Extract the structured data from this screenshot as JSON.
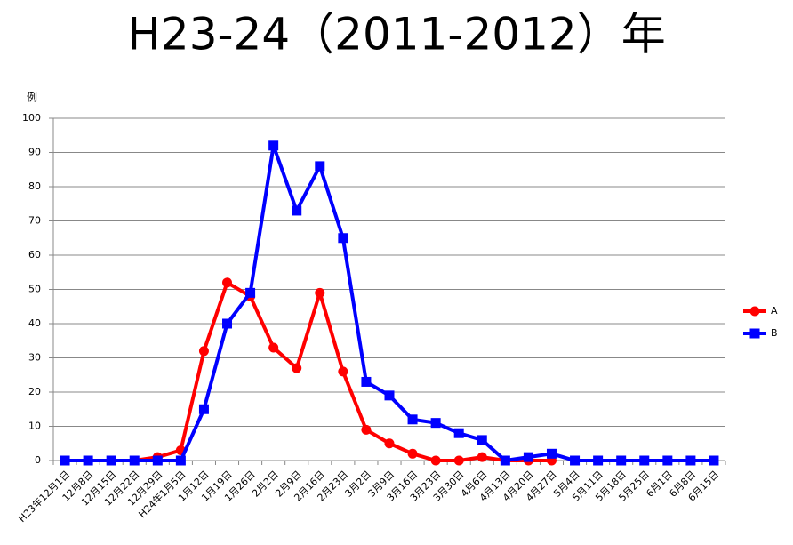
{
  "chart_data": {
    "type": "line",
    "title": "H23-24（2011-2012）年",
    "y_label": "例",
    "categories": [
      "H23年12月1日",
      "12月8日",
      "12月15日",
      "12月22日",
      "12月29日",
      "H24年1月5日",
      "1月12日",
      "1月19日",
      "1月26日",
      "2月2日",
      "2月9日",
      "2月16日",
      "2月23日",
      "3月2日",
      "3月9日",
      "3月16日",
      "3月23日",
      "3月30日",
      "4月6日",
      "4月13日",
      "4月20日",
      "4月27日",
      "5月4日",
      "5月11日",
      "5月18日",
      "5月25日",
      "6月1日",
      "6月8日",
      "6月15日"
    ],
    "series": [
      {
        "name": "A",
        "color": "#ff0000",
        "marker": "circle",
        "values": [
          0,
          0,
          0,
          0,
          1,
          3,
          32,
          52,
          48,
          33,
          27,
          49,
          26,
          9,
          5,
          2,
          0,
          0,
          1,
          0,
          0,
          0,
          null,
          null,
          null,
          null,
          null,
          null,
          null
        ]
      },
      {
        "name": "B",
        "color": "#0000ff",
        "marker": "square",
        "values": [
          0,
          0,
          0,
          0,
          0,
          0,
          15,
          40,
          49,
          92,
          73,
          86,
          65,
          23,
          19,
          12,
          11,
          8,
          6,
          0,
          1,
          2,
          0,
          0,
          0,
          0,
          0,
          0,
          0
        ]
      }
    ],
    "ylim": [
      0,
      100
    ],
    "yticks": [
      0,
      10,
      20,
      30,
      40,
      50,
      60,
      70,
      80,
      90,
      100
    ],
    "grid": true,
    "legend": "right"
  }
}
